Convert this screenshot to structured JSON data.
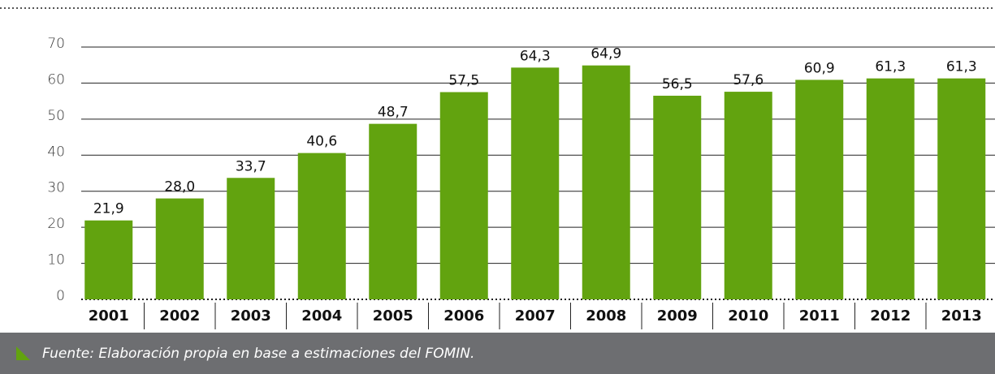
{
  "chart_data": {
    "type": "bar",
    "categories": [
      "2001",
      "2002",
      "2003",
      "2004",
      "2005",
      "2006",
      "2007",
      "2008",
      "2009",
      "2010",
      "2011",
      "2012",
      "2013"
    ],
    "values": [
      21.9,
      28.0,
      33.7,
      40.6,
      48.7,
      57.5,
      64.3,
      64.9,
      56.5,
      57.6,
      60.9,
      61.3,
      61.3
    ],
    "value_labels": [
      "21,9",
      "28,0",
      "33,7",
      "40,6",
      "48,7",
      "57,5",
      "64,3",
      "64,9",
      "56,5",
      "57,6",
      "60,9",
      "61,3",
      "61,3"
    ],
    "color": "#62a30f",
    "ylim": [
      0,
      70
    ],
    "yticks": [
      0,
      10,
      20,
      30,
      40,
      50,
      60,
      70
    ],
    "grid": true,
    "source": "Fuente: Elaboración propia en base a estimaciones del FOMIN."
  }
}
